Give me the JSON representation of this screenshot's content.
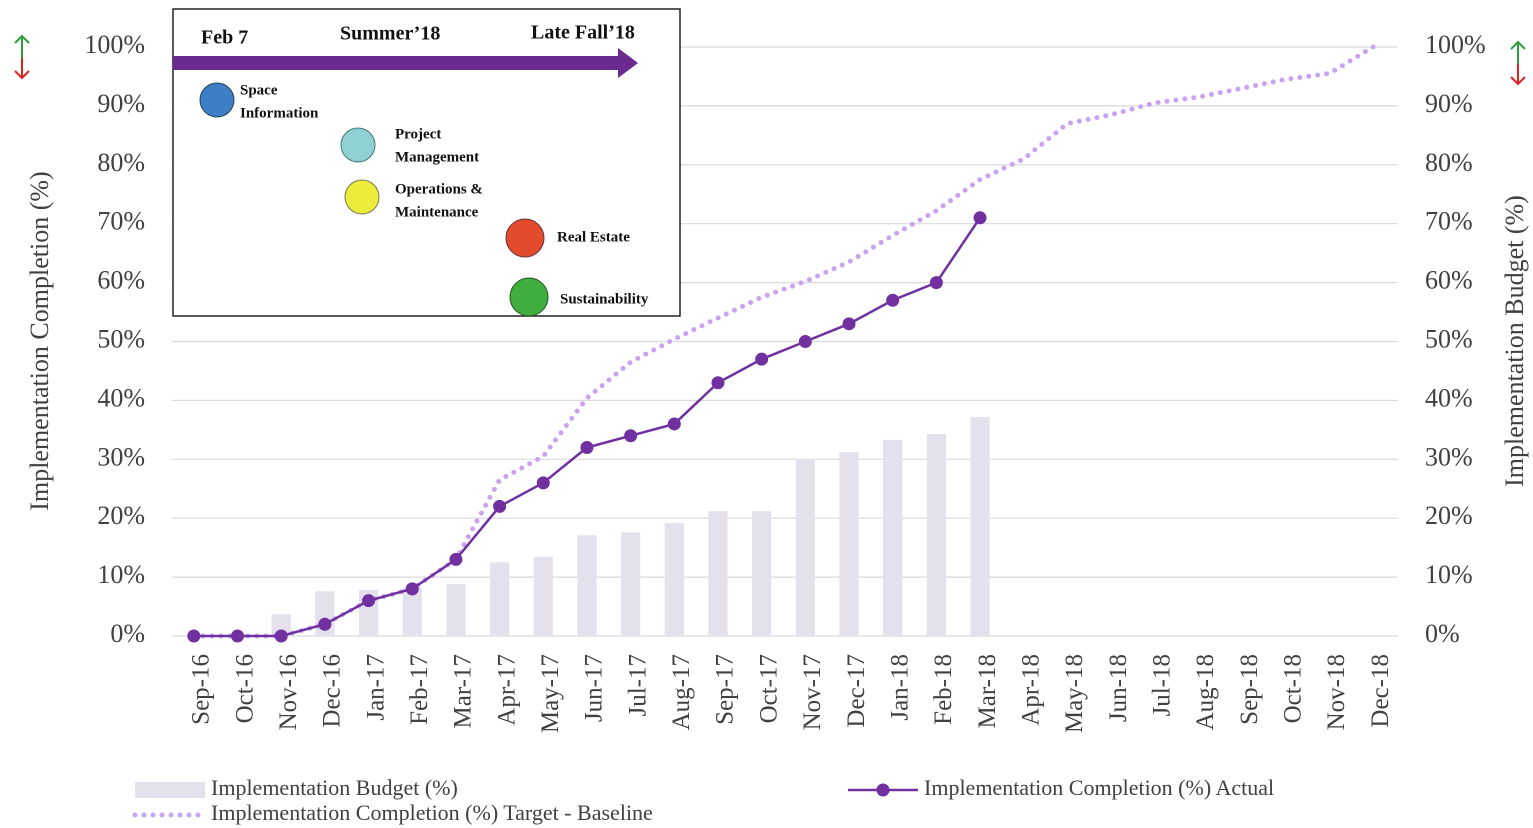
{
  "chart_data": {
    "type": "bar-line",
    "y_label": "Implementation Completion (%)",
    "y2_label": "Implementation Budget (%)",
    "categories": [
      "Sep-16",
      "Oct-16",
      "Nov-16",
      "Dec-16",
      "Jan-17",
      "Feb-17",
      "Mar-17",
      "Apr-17",
      "May-17",
      "Jun-17",
      "Jul-17",
      "Aug-17",
      "Sep-17",
      "Oct-17",
      "Nov-17",
      "Dec-17",
      "Jan-18",
      "Feb-18",
      "Mar-18",
      "Apr-18",
      "May-18",
      "Jun-18",
      "Jul-18",
      "Aug-18",
      "Sep-18",
      "Oct-18",
      "Nov-18",
      "Dec-18"
    ],
    "series": [
      {
        "name": "Implementation Budget (%)",
        "kind": "bar",
        "axis": "y2",
        "color": "#e4e0ec",
        "values": [
          0,
          0,
          3.7,
          7.6,
          7.8,
          8.2,
          8.8,
          12.5,
          13.4,
          17.1,
          17.6,
          19.2,
          21.2,
          21.2,
          30,
          31.2,
          33.3,
          34.3,
          37.2,
          null,
          null,
          null,
          null,
          null,
          null,
          null,
          null,
          null
        ]
      },
      {
        "name": "Implementation Completion (%) Target - Baseline",
        "kind": "dotted-line",
        "color": "#c9a2f2",
        "values": [
          0,
          0,
          0,
          2,
          6,
          8,
          13,
          26.5,
          30.5,
          40.4,
          46.5,
          50.4,
          54,
          57.5,
          60.2,
          63.5,
          68,
          72.2,
          77.5,
          81,
          87,
          88.5,
          90.5,
          91.5,
          93,
          94.5,
          95.5,
          100
        ]
      },
      {
        "name": "Implementation Completion (%) Actual",
        "kind": "line-marker",
        "color": "#7030a0",
        "values": [
          0,
          0,
          0,
          2,
          6,
          8,
          13,
          22,
          26,
          32,
          34,
          36,
          43,
          47,
          50,
          53,
          57,
          60,
          71,
          null,
          null,
          null,
          null,
          null,
          null,
          null,
          null,
          null
        ]
      }
    ],
    "ylim": [
      0,
      100
    ],
    "yticks": [
      {
        "value": 0,
        "label": "0%"
      },
      {
        "value": 10,
        "label": "10%"
      },
      {
        "value": 20,
        "label": "20%"
      },
      {
        "value": 30,
        "label": "30%"
      },
      {
        "value": 40,
        "label": "40%"
      },
      {
        "value": 50,
        "label": "50%"
      },
      {
        "value": 60,
        "label": "60%"
      },
      {
        "value": 70,
        "label": "70%"
      },
      {
        "value": 80,
        "label": "80%"
      },
      {
        "value": 90,
        "label": "90%"
      },
      {
        "value": 100,
        "label": "100%"
      }
    ],
    "y2lim": [
      0,
      100
    ],
    "y2ticks": [
      {
        "value": 0,
        "label": "0%"
      },
      {
        "value": 10,
        "label": "10%"
      },
      {
        "value": 20,
        "label": "20%"
      },
      {
        "value": 30,
        "label": "30%"
      },
      {
        "value": 40,
        "label": "40%"
      },
      {
        "value": 50,
        "label": "50%"
      },
      {
        "value": 60,
        "label": "60%"
      },
      {
        "value": 70,
        "label": "70%"
      },
      {
        "value": 80,
        "label": "80%"
      },
      {
        "value": 90,
        "label": "90%"
      },
      {
        "value": 100,
        "label": "100%"
      }
    ],
    "grid": true,
    "legend": "bottom"
  },
  "inset": {
    "milestones": [
      "Feb 7",
      "Summer’18",
      "Late Fall’18"
    ],
    "items": [
      {
        "line1": "Space",
        "line2": "Information"
      },
      {
        "line1": "Project",
        "line2": "Management"
      },
      {
        "line1": "Operations &",
        "line2": "Maintenance"
      },
      {
        "line1": "Real  Estate"
      },
      {
        "line1": "Sustainability"
      }
    ]
  }
}
